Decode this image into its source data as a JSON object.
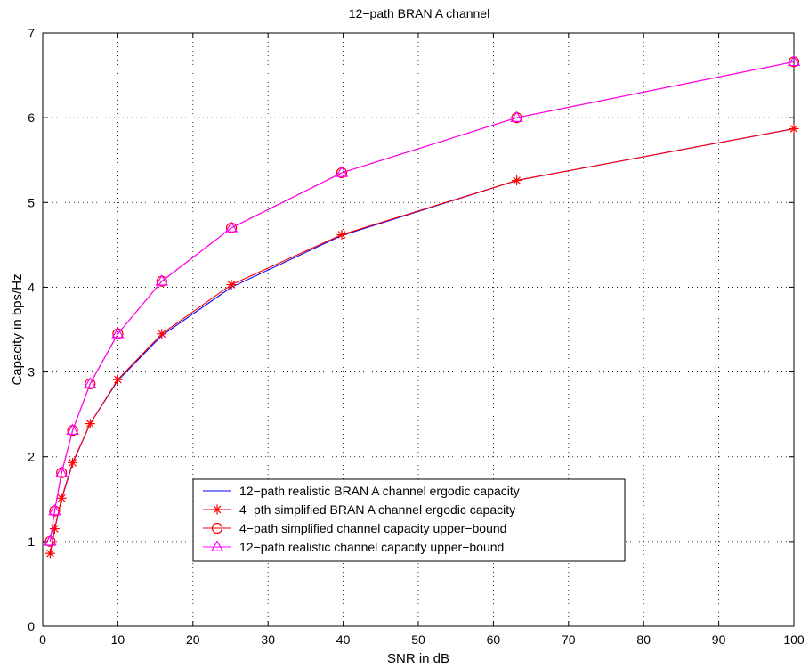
{
  "chart_data": {
    "type": "line",
    "title": "12−path BRAN A channel",
    "xlabel": "SNR in dB",
    "ylabel": "Capacity in bps/Hz",
    "xlim": [
      0,
      100
    ],
    "ylim": [
      0,
      7
    ],
    "xticks": [
      0,
      10,
      20,
      30,
      40,
      50,
      60,
      70,
      80,
      90,
      100
    ],
    "yticks": [
      0,
      1,
      2,
      3,
      4,
      5,
      6,
      7
    ],
    "grid": true,
    "legend_position": "lower-center",
    "x": [
      1,
      1.585,
      2.512,
      3.981,
      6.31,
      10,
      15.85,
      25.12,
      39.81,
      63.1,
      100
    ],
    "series": [
      {
        "name": "12−path realistic BRAN A channel ergodic capacity",
        "color": "#0000ff",
        "marker": "none",
        "values": [
          0.86,
          1.14,
          1.5,
          1.92,
          2.39,
          2.9,
          3.43,
          4.0,
          4.61,
          5.26,
          5.87
        ]
      },
      {
        "name": "4−pth simplified BRAN A channel ergodic capacity",
        "color": "#ff0000",
        "marker": "star",
        "values": [
          0.86,
          1.15,
          1.51,
          1.93,
          2.39,
          2.91,
          3.45,
          4.03,
          4.62,
          5.26,
          5.87
        ]
      },
      {
        "name": "4−path simplified channel capacity upper−bound",
        "color": "#ff0000",
        "marker": "circle",
        "values": [
          1.0,
          1.36,
          1.81,
          2.31,
          2.86,
          3.45,
          4.07,
          4.7,
          5.35,
          6.0,
          6.66
        ]
      },
      {
        "name": "12−path realistic channel capacity upper−bound",
        "color": "#ff00ff",
        "marker": "triangle",
        "values": [
          1.0,
          1.36,
          1.81,
          2.31,
          2.86,
          3.45,
          4.07,
          4.7,
          5.35,
          6.0,
          6.66
        ]
      }
    ]
  }
}
